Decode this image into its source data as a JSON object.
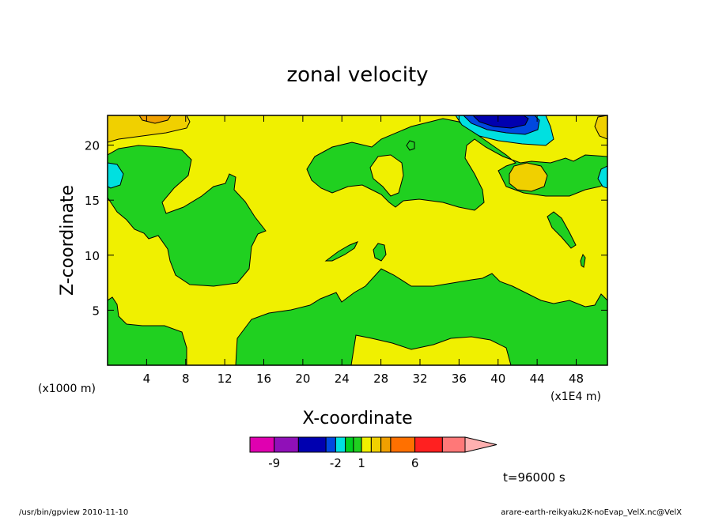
{
  "chart_data": {
    "type": "heatmap",
    "title": "zonal velocity",
    "xlabel": "X-coordinate",
    "ylabel": "Z-coordinate",
    "x_scale_note": "(x1E4 m)",
    "y_scale_note": "(x1000 m)",
    "x_ticks": [
      "4",
      "8",
      "12",
      "16",
      "20",
      "24",
      "28",
      "32",
      "36",
      "40",
      "44",
      "48"
    ],
    "y_ticks": [
      "5",
      "10",
      "15",
      "20"
    ],
    "xlim": [
      0,
      51.2
    ],
    "ylim": [
      0,
      22.7
    ],
    "colorbar": {
      "tick_labels": [
        "-9",
        "-2",
        "1",
        "6"
      ],
      "levels": [
        -12,
        -9,
        -6,
        -3,
        -2,
        -1,
        0,
        1,
        2,
        3,
        4,
        6,
        9,
        12
      ],
      "colors": [
        "#e000b0",
        "#9010b8",
        "#0000b0",
        "#0048e0",
        "#00e0e0",
        "#00d020",
        "#20d020",
        "#f0f000",
        "#f0d000",
        "#f0a000",
        "#ff7000",
        "#ff2020",
        "#ff7878",
        "#ffb0b0"
      ]
    },
    "time_label": "t=96000 s",
    "footer_left": "/usr/bin/gpview   2010-11-10",
    "footer_right": "arare-earth-reikyaku2K-noEvap_VelX.nc@VelX"
  }
}
